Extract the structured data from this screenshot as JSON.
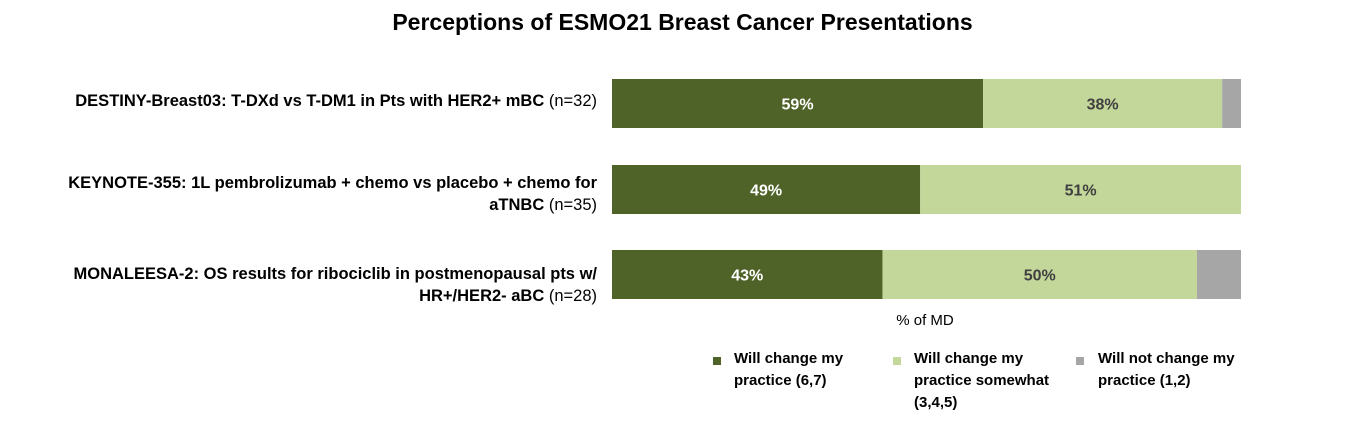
{
  "chart_data": {
    "type": "bar",
    "orientation": "horizontal",
    "stacked": true,
    "title": "Perceptions of ESMO21 Breast Cancer Presentations",
    "xlabel": "% of MD",
    "xlim": [
      0,
      100
    ],
    "categories": [
      {
        "label": "DESTINY-Breast03: T-DXd vs T-DM1 in Pts with HER2+ mBC",
        "n": "(n=32)"
      },
      {
        "label": "KEYNOTE-355: 1L pembrolizumab + chemo vs placebo + chemo for aTNBC",
        "n": "(n=35)"
      },
      {
        "label": "MONALEESA-2: OS results for ribociclib in postmenopausal pts w/ HR+/HER2- aBC",
        "n": "(n=28)"
      }
    ],
    "series": [
      {
        "name": "Will change my practice (6,7)",
        "color": "#4f6228",
        "label_color": "#ffffff",
        "values": [
          59,
          49,
          43
        ]
      },
      {
        "name": "Will change my practice somewhat (3,4,5)",
        "color": "#c4d79b",
        "label_color": "#404040",
        "values": [
          38,
          51,
          50
        ]
      },
      {
        "name": "Will not change my practice (1,2)",
        "color": "#a6a6a6",
        "label_color": "#404040",
        "values": [
          3,
          0,
          7
        ]
      }
    ],
    "data_labels": [
      [
        "59%",
        "38%",
        ""
      ],
      [
        "49%",
        "51%",
        ""
      ],
      [
        "43%",
        "50%",
        ""
      ]
    ],
    "legend_position": "bottom"
  }
}
